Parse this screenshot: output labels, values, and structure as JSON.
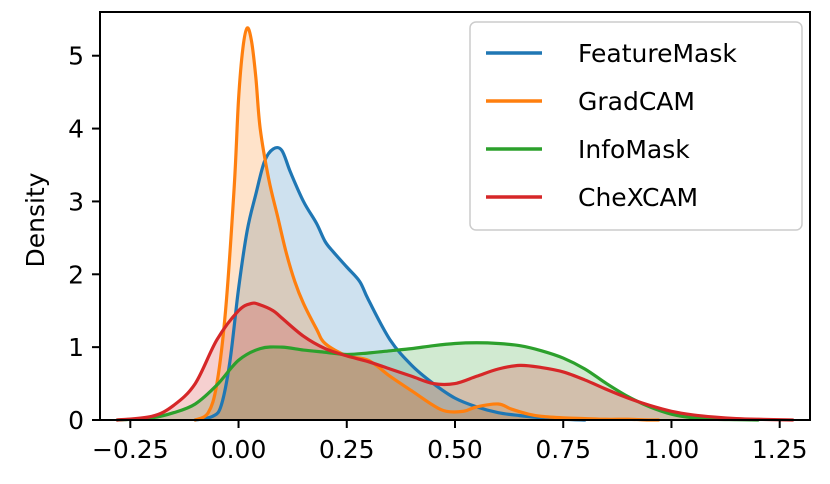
{
  "chart_data": {
    "type": "area",
    "title": "",
    "xlabel": "",
    "ylabel": "Density",
    "xlim": [
      -0.32,
      1.32
    ],
    "ylim": [
      0,
      5.6
    ],
    "x_ticks": [
      -0.25,
      0.0,
      0.25,
      0.5,
      0.75,
      1.0,
      1.25
    ],
    "x_tick_labels": [
      "−0.25",
      "0.00",
      "0.25",
      "0.50",
      "0.75",
      "1.00",
      "1.25"
    ],
    "y_ticks": [
      0,
      1,
      2,
      3,
      4,
      5
    ],
    "y_tick_labels": [
      "0",
      "1",
      "2",
      "3",
      "4",
      "5"
    ],
    "grid": false,
    "legend_position": "top-right",
    "series": [
      {
        "name": "FeatureMask",
        "color": "#1f77b4",
        "x": [
          -0.1,
          -0.06,
          -0.04,
          -0.02,
          0.0,
          0.02,
          0.04,
          0.06,
          0.08,
          0.1,
          0.12,
          0.15,
          0.18,
          0.2,
          0.22,
          0.25,
          0.28,
          0.3,
          0.35,
          0.4,
          0.45,
          0.5,
          0.55,
          0.6,
          0.65,
          0.7,
          0.75,
          0.8
        ],
        "y": [
          0.0,
          0.05,
          0.2,
          0.8,
          1.8,
          2.6,
          3.1,
          3.55,
          3.72,
          3.7,
          3.4,
          3.0,
          2.7,
          2.45,
          2.3,
          2.1,
          1.9,
          1.65,
          1.1,
          0.75,
          0.5,
          0.3,
          0.18,
          0.1,
          0.06,
          0.03,
          0.01,
          0.0
        ]
      },
      {
        "name": "GradCAM",
        "color": "#ff7f0e",
        "x": [
          -0.1,
          -0.07,
          -0.05,
          -0.03,
          -0.01,
          0.0,
          0.01,
          0.02,
          0.03,
          0.04,
          0.05,
          0.07,
          0.09,
          0.11,
          0.13,
          0.15,
          0.18,
          0.2,
          0.25,
          0.3,
          0.35,
          0.4,
          0.45,
          0.48,
          0.52,
          0.55,
          0.6,
          0.63,
          0.67,
          0.7,
          0.75,
          0.8,
          0.85,
          0.9,
          0.95,
          0.97
        ],
        "y": [
          0.0,
          0.1,
          0.5,
          1.5,
          3.2,
          4.4,
          5.1,
          5.38,
          5.2,
          4.7,
          4.0,
          3.3,
          2.8,
          2.3,
          1.9,
          1.6,
          1.25,
          1.05,
          0.88,
          0.82,
          0.6,
          0.4,
          0.2,
          0.12,
          0.12,
          0.18,
          0.22,
          0.15,
          0.08,
          0.05,
          0.03,
          0.02,
          0.01,
          0.01,
          0.0,
          0.0
        ]
      },
      {
        "name": "InfoMask",
        "color": "#2ca02c",
        "x": [
          -0.28,
          -0.2,
          -0.15,
          -0.1,
          -0.05,
          0.0,
          0.05,
          0.1,
          0.15,
          0.2,
          0.25,
          0.3,
          0.35,
          0.4,
          0.45,
          0.5,
          0.55,
          0.6,
          0.65,
          0.7,
          0.75,
          0.8,
          0.85,
          0.9,
          0.95,
          1.0,
          1.05,
          1.1,
          1.15,
          1.2
        ],
        "y": [
          0.0,
          0.03,
          0.1,
          0.22,
          0.48,
          0.82,
          0.98,
          1.0,
          0.96,
          0.93,
          0.9,
          0.92,
          0.95,
          0.98,
          1.02,
          1.05,
          1.06,
          1.05,
          1.02,
          0.95,
          0.85,
          0.7,
          0.5,
          0.32,
          0.18,
          0.08,
          0.03,
          0.01,
          0.005,
          0.0
        ]
      },
      {
        "name": "CheXCAM",
        "color": "#d62728",
        "x": [
          -0.28,
          -0.2,
          -0.15,
          -0.1,
          -0.05,
          0.0,
          0.03,
          0.05,
          0.08,
          0.1,
          0.15,
          0.2,
          0.25,
          0.3,
          0.35,
          0.4,
          0.45,
          0.5,
          0.55,
          0.6,
          0.65,
          0.7,
          0.75,
          0.8,
          0.85,
          0.9,
          0.95,
          1.0,
          1.05,
          1.1,
          1.15,
          1.2,
          1.28
        ],
        "y": [
          0.0,
          0.05,
          0.2,
          0.5,
          1.1,
          1.5,
          1.6,
          1.58,
          1.5,
          1.4,
          1.15,
          0.98,
          0.88,
          0.8,
          0.7,
          0.6,
          0.5,
          0.5,
          0.6,
          0.7,
          0.75,
          0.72,
          0.66,
          0.55,
          0.42,
          0.3,
          0.2,
          0.12,
          0.07,
          0.04,
          0.02,
          0.01,
          0.0
        ]
      }
    ]
  }
}
